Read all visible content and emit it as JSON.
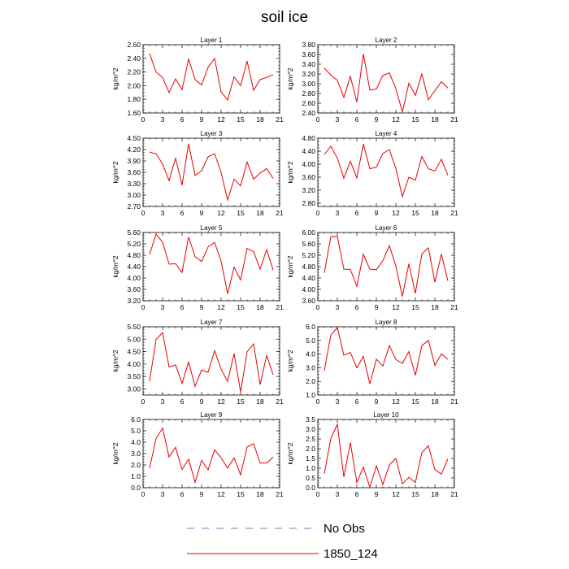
{
  "figure": {
    "title": "soil ice",
    "legend": [
      {
        "label": "No Obs",
        "style": "dashed",
        "color": "#7a7ab8"
      },
      {
        "label": "1850_124",
        "style": "solid",
        "color": "#e60000"
      }
    ]
  },
  "chart_data": [
    {
      "type": "line",
      "title": "Layer 1",
      "ylabel": "kg/m^2",
      "xlim": [
        0,
        21
      ],
      "ylim": [
        1.6,
        2.6
      ],
      "xticks": [
        "0",
        "3",
        "6",
        "9",
        "12",
        "15",
        "18",
        "21"
      ],
      "yticks": [
        "1.60",
        "1.80",
        "2.00",
        "2.20",
        "2.40",
        "2.60"
      ],
      "series": [
        {
          "color": "#e60000",
          "x": [
            1,
            2,
            3,
            4,
            5,
            6,
            7,
            8,
            9,
            10,
            11,
            12,
            13,
            14,
            15,
            16,
            17,
            18,
            19,
            20
          ],
          "y": [
            2.47,
            2.2,
            2.12,
            1.9,
            2.1,
            1.94,
            2.39,
            2.09,
            2.01,
            2.27,
            2.4,
            1.91,
            1.79,
            2.13,
            2.0,
            2.36,
            1.93,
            2.09,
            2.12,
            2.16
          ]
        }
      ]
    },
    {
      "type": "line",
      "title": "Layer 2",
      "ylabel": "kg/m^2",
      "xlim": [
        0,
        21
      ],
      "ylim": [
        2.4,
        3.8
      ],
      "xticks": [
        "0",
        "3",
        "6",
        "9",
        "12",
        "15",
        "18",
        "21"
      ],
      "yticks": [
        "2.40",
        "2.60",
        "2.80",
        "3.00",
        "3.20",
        "3.40",
        "3.60",
        "3.80"
      ],
      "series": [
        {
          "color": "#e60000",
          "x": [
            1,
            2,
            3,
            4,
            5,
            6,
            7,
            8,
            9,
            10,
            11,
            12,
            13,
            14,
            15,
            16,
            17,
            18,
            19,
            20
          ],
          "y": [
            3.32,
            3.18,
            3.07,
            2.72,
            3.15,
            2.62,
            3.61,
            2.87,
            2.89,
            3.17,
            3.22,
            2.9,
            2.42,
            3.01,
            2.76,
            3.2,
            2.67,
            2.86,
            3.04,
            2.91
          ]
        }
      ]
    },
    {
      "type": "line",
      "title": "Layer 3",
      "ylabel": "kg/m^2",
      "xlim": [
        0,
        21
      ],
      "ylim": [
        2.7,
        4.5
      ],
      "xticks": [
        "0",
        "3",
        "6",
        "9",
        "12",
        "15",
        "18",
        "21"
      ],
      "yticks": [
        "2.70",
        "3.00",
        "3.30",
        "3.60",
        "3.90",
        "4.20",
        "4.50"
      ],
      "series": [
        {
          "color": "#e60000",
          "x": [
            1,
            2,
            3,
            4,
            5,
            6,
            7,
            8,
            9,
            10,
            11,
            12,
            13,
            14,
            15,
            16,
            17,
            18,
            19,
            20
          ],
          "y": [
            4.13,
            4.09,
            3.82,
            3.38,
            3.97,
            3.26,
            4.35,
            3.52,
            3.64,
            4.01,
            4.09,
            3.6,
            2.87,
            3.42,
            3.24,
            3.87,
            3.42,
            3.58,
            3.7,
            3.44
          ]
        }
      ]
    },
    {
      "type": "line",
      "title": "Layer 4",
      "ylabel": "kg/m^2",
      "xlim": [
        0,
        21
      ],
      "ylim": [
        2.7,
        4.8
      ],
      "xticks": [
        "0",
        "3",
        "6",
        "9",
        "12",
        "15",
        "18",
        "21"
      ],
      "yticks": [
        "2.80",
        "3.20",
        "3.60",
        "4.00",
        "4.40",
        "4.80"
      ],
      "series": [
        {
          "color": "#e60000",
          "x": [
            1,
            2,
            3,
            4,
            5,
            6,
            7,
            8,
            9,
            10,
            11,
            12,
            13,
            14,
            15,
            16,
            17,
            18,
            19,
            20
          ],
          "y": [
            4.3,
            4.55,
            4.19,
            3.57,
            4.09,
            3.58,
            4.62,
            3.86,
            3.91,
            4.33,
            4.45,
            3.87,
            3.0,
            3.6,
            3.51,
            4.24,
            3.86,
            3.79,
            4.15,
            3.66
          ]
        }
      ]
    },
    {
      "type": "line",
      "title": "Layer 5",
      "ylabel": "kg/m^2",
      "xlim": [
        0,
        21
      ],
      "ylim": [
        3.2,
        5.6
      ],
      "xticks": [
        "0",
        "3",
        "6",
        "9",
        "12",
        "15",
        "18",
        "21"
      ],
      "yticks": [
        "3.20",
        "3.60",
        "4.00",
        "4.40",
        "4.80",
        "5.20",
        "5.60"
      ],
      "series": [
        {
          "color": "#e60000",
          "x": [
            1,
            2,
            3,
            4,
            5,
            6,
            7,
            8,
            9,
            10,
            11,
            12,
            13,
            14,
            15,
            16,
            17,
            18,
            19,
            20
          ],
          "y": [
            4.83,
            5.54,
            5.26,
            4.49,
            4.5,
            4.2,
            5.44,
            4.75,
            4.58,
            5.09,
            5.25,
            4.59,
            3.45,
            4.38,
            3.93,
            5.04,
            4.93,
            4.31,
            5.0,
            4.28
          ]
        }
      ]
    },
    {
      "type": "line",
      "title": "Layer 6",
      "ylabel": "kg/m^2",
      "xlim": [
        0,
        21
      ],
      "ylim": [
        3.6,
        6.0
      ],
      "xticks": [
        "0",
        "3",
        "6",
        "9",
        "12",
        "15",
        "18",
        "21"
      ],
      "yticks": [
        "3.60",
        "4.00",
        "4.40",
        "4.80",
        "5.20",
        "5.60",
        "6.00"
      ],
      "series": [
        {
          "color": "#e60000",
          "x": [
            1,
            2,
            3,
            4,
            5,
            6,
            7,
            8,
            9,
            10,
            11,
            12,
            13,
            14,
            15,
            16,
            17,
            18,
            19,
            20
          ],
          "y": [
            4.58,
            5.85,
            5.86,
            4.71,
            4.7,
            4.11,
            5.23,
            4.71,
            4.69,
            5.01,
            5.54,
            4.82,
            3.75,
            4.9,
            3.86,
            5.25,
            5.46,
            4.25,
            5.24,
            4.3
          ]
        }
      ]
    },
    {
      "type": "line",
      "title": "Layer 7",
      "ylabel": "kg/m^2",
      "xlim": [
        0,
        21
      ],
      "ylim": [
        2.75,
        5.5
      ],
      "xticks": [
        "0",
        "3",
        "6",
        "9",
        "12",
        "15",
        "18",
        "21"
      ],
      "yticks": [
        "3.00",
        "3.50",
        "4.00",
        "4.50",
        "5.00",
        "5.50"
      ],
      "series": [
        {
          "color": "#e60000",
          "x": [
            1,
            2,
            3,
            4,
            5,
            6,
            7,
            8,
            9,
            10,
            11,
            12,
            13,
            14,
            15,
            16,
            17,
            18,
            19,
            20
          ],
          "y": [
            3.31,
            4.99,
            5.26,
            3.88,
            3.96,
            3.22,
            4.08,
            3.1,
            3.76,
            3.67,
            4.54,
            3.79,
            3.3,
            4.42,
            2.87,
            4.49,
            4.81,
            3.17,
            4.34,
            3.57
          ]
        }
      ]
    },
    {
      "type": "line",
      "title": "Layer 8",
      "ylabel": "kg/m^2",
      "xlim": [
        0,
        21
      ],
      "ylim": [
        1.0,
        6.0
      ],
      "xticks": [
        "0",
        "3",
        "6",
        "9",
        "12",
        "15",
        "18",
        "21"
      ],
      "yticks": [
        "1.0",
        "2.0",
        "3.0",
        "4.0",
        "5.0",
        "6.0"
      ],
      "series": [
        {
          "color": "#e60000",
          "x": [
            1,
            2,
            3,
            4,
            5,
            6,
            7,
            8,
            9,
            10,
            11,
            12,
            13,
            14,
            15,
            16,
            17,
            18,
            19,
            20
          ],
          "y": [
            2.8,
            5.4,
            5.95,
            3.92,
            4.12,
            3.0,
            3.83,
            1.82,
            3.62,
            3.13,
            4.62,
            3.6,
            3.32,
            4.18,
            2.45,
            4.62,
            5.0,
            3.17,
            4.01,
            3.62
          ]
        }
      ]
    },
    {
      "type": "line",
      "title": "Layer 9",
      "ylabel": "kg/m^2",
      "xlim": [
        0,
        21
      ],
      "ylim": [
        0.0,
        6.0
      ],
      "xticks": [
        "0",
        "3",
        "6",
        "9",
        "12",
        "15",
        "18",
        "21"
      ],
      "yticks": [
        "0.0",
        "1.0",
        "2.0",
        "3.0",
        "4.0",
        "5.0",
        "6.0"
      ],
      "series": [
        {
          "color": "#e60000",
          "x": [
            1,
            2,
            3,
            4,
            5,
            6,
            7,
            8,
            9,
            10,
            11,
            12,
            13,
            14,
            15,
            16,
            17,
            18,
            19,
            20
          ],
          "y": [
            1.73,
            4.32,
            5.24,
            2.7,
            3.55,
            1.6,
            2.51,
            0.47,
            2.4,
            1.57,
            3.33,
            2.62,
            1.73,
            2.62,
            1.13,
            3.58,
            3.87,
            2.17,
            2.17,
            2.69
          ]
        }
      ]
    },
    {
      "type": "line",
      "title": "Layer 10",
      "ylabel": "kg/m^2",
      "xlim": [
        0,
        21
      ],
      "ylim": [
        0.0,
        3.5
      ],
      "xticks": [
        "0",
        "3",
        "6",
        "9",
        "12",
        "15",
        "18",
        "21"
      ],
      "yticks": [
        "0.0",
        "0.5",
        "1.0",
        "1.5",
        "2.0",
        "2.5",
        "3.0",
        "3.5"
      ],
      "series": [
        {
          "color": "#e60000",
          "x": [
            1,
            2,
            3,
            4,
            5,
            6,
            7,
            8,
            9,
            10,
            11,
            12,
            13,
            14,
            15,
            16,
            17,
            18,
            19,
            20
          ],
          "y": [
            0.72,
            2.52,
            3.25,
            0.55,
            2.31,
            0.27,
            1.06,
            0.02,
            1.12,
            0.17,
            1.17,
            1.5,
            0.2,
            0.53,
            0.27,
            1.8,
            2.15,
            0.93,
            0.7,
            1.48
          ]
        }
      ]
    }
  ]
}
